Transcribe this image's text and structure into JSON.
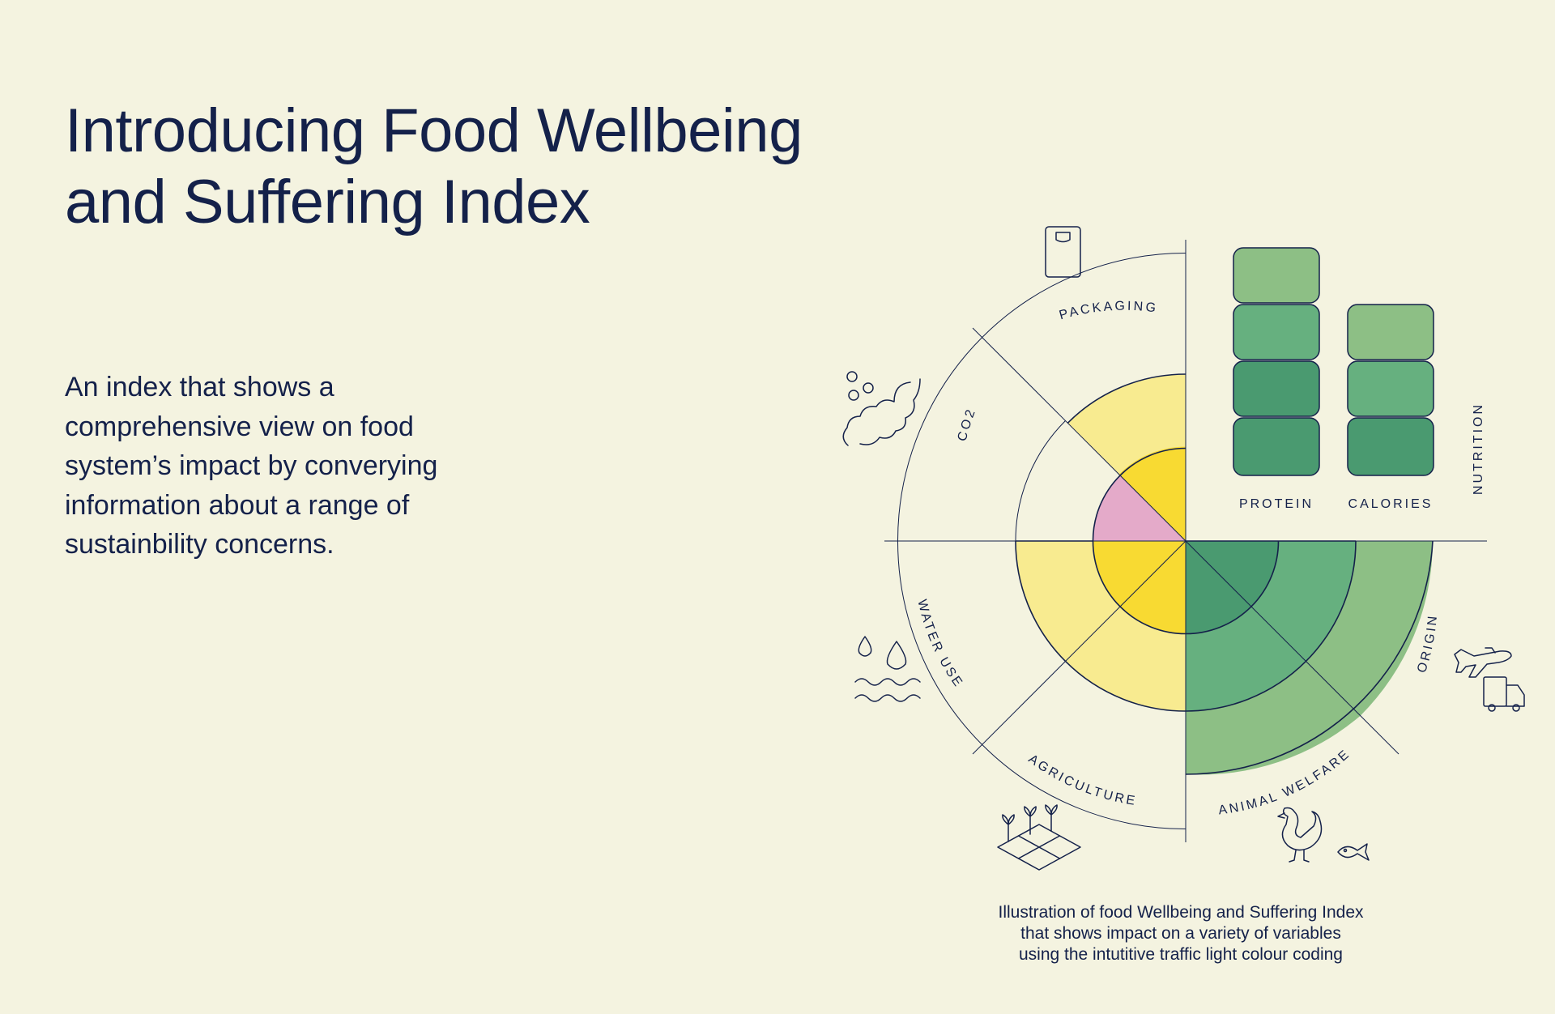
{
  "heading": {
    "line1": "Introducing Food Wellbeing",
    "line2": "and Suffering Index"
  },
  "description": {
    "lines": [
      "An index that shows a",
      "comprehensive view on food",
      "system’s impact by converying",
      "information about a range of",
      "sustainbility concerns."
    ]
  },
  "diagram": {
    "categories": {
      "packaging": "PACKAGING",
      "co2": "CO2",
      "water_use": "WATER USE",
      "agriculture": "AGRICULTURE",
      "animal_welfare": "ANIMAL WELFARE",
      "origin": "ORIGIN",
      "nutrition": "NUTRITION"
    },
    "bars": {
      "protein": {
        "label": "PROTEIN",
        "blocks": 4
      },
      "calories": {
        "label": "CALORIES",
        "blocks": 3
      }
    },
    "icons": [
      "packaging-bag-icon",
      "co2-cloud-icon",
      "water-drops-icon",
      "agriculture-field-icon",
      "animal-chicken-fish-icon",
      "origin-plane-truck-icon"
    ],
    "colors": {
      "light_yellow": "#f8eb90",
      "yellow": "#f8da32",
      "pink": "#e4aac9",
      "dark_green": "#4a9a70",
      "mid_green": "#66b07f",
      "light_green": "#8dbf85",
      "line": "#14214a"
    }
  },
  "caption": {
    "line1": "Illustration of food Wellbeing and Suffering Index",
    "line2": "that shows impact on a variety of variables",
    "line3": "using the intutitive traffic light colour coding"
  }
}
